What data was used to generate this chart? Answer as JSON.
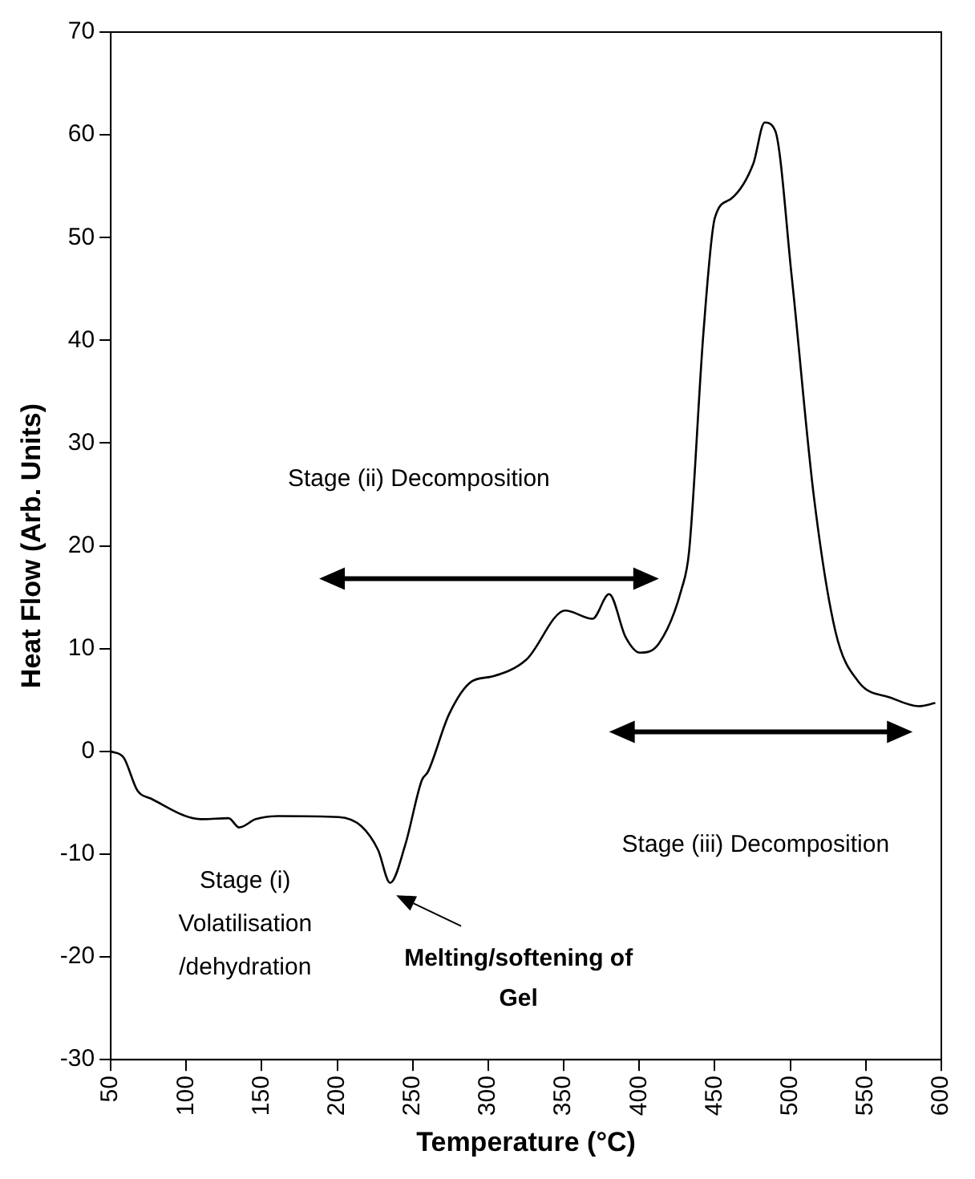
{
  "chart_data": {
    "type": "line",
    "xlabel": "Temperature (°C)",
    "ylabel": "Heat Flow (Arb. Units)",
    "x": [
      50,
      58.5,
      67.6,
      76.7,
      110,
      128,
      135,
      146,
      161,
      201,
      216,
      227,
      235,
      245,
      256,
      260,
      274,
      289,
      303,
      325,
      351,
      369,
      380,
      391,
      400.5,
      413,
      428,
      433,
      442.5,
      450,
      461,
      475.5,
      483,
      490,
      501,
      515.6,
      530,
      545,
      567,
      585,
      596
    ],
    "series": [
      {
        "color": "#000000",
        "values": [
          0,
          -0.6,
          -3.8,
          -4.6,
          -6.6,
          -6.5,
          -7.4,
          -6.6,
          -6.3,
          -6.4,
          -7.3,
          -9.6,
          -12.8,
          -9.1,
          -2.8,
          -2.0,
          3.6,
          6.8,
          7.3,
          8.9,
          13.7,
          12.9,
          15.3,
          11.1,
          9.6,
          10.5,
          15.8,
          19.5,
          40.8,
          51.9,
          53.8,
          57.2,
          61.2,
          60.4,
          46.1,
          24.8,
          11.6,
          6.8,
          5.2,
          4.4,
          4.7
        ]
      }
    ],
    "xlim": [
      50,
      600
    ],
    "xticks": [
      50,
      100,
      150,
      200,
      250,
      300,
      350,
      400,
      450,
      500,
      550,
      600
    ],
    "ylim": [
      -30,
      70
    ],
    "yticks": [
      -30,
      -20,
      -10,
      0,
      10,
      20,
      30,
      40,
      50,
      60,
      70
    ],
    "grid": false,
    "legend": false,
    "marker": "none",
    "line_style": "solid",
    "annotations": [
      "Stage (ii) Decomposition",
      "Stage (iii) Decomposition",
      "Stage (i)\nVolatilisation\n/dehydration",
      "Melting/softening of\nGel"
    ]
  }
}
